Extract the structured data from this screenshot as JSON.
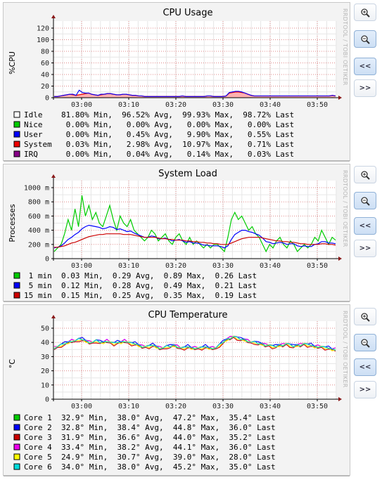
{
  "watermark": "RRDTOOL / TOBI OETIKER",
  "buttons": [
    {
      "name": "zoom-in-button",
      "icon": "zoom-in-icon",
      "label": ""
    },
    {
      "name": "zoom-out-button",
      "icon": "zoom-out-icon",
      "label": ""
    },
    {
      "name": "scroll-back-button",
      "icon": "",
      "label": "<<"
    },
    {
      "name": "scroll-forward-button",
      "icon": "",
      "label": ">>"
    }
  ],
  "colors": {
    "grid_major": "#e08a8a",
    "grid_minor": "#e6e6e6",
    "axis": "#000000",
    "arrow": "#8b1a1a",
    "plot_bg": "#ffffff"
  },
  "chart_data": [
    {
      "type": "area",
      "title": "CPU Usage",
      "ylabel": "%CPU",
      "xlabel": "",
      "x_ticks": [
        "03:00",
        "03:10",
        "03:20",
        "03:30",
        "03:40",
        "03:50"
      ],
      "y_ticks": [
        "0",
        "20",
        "40",
        "60",
        "80",
        "100",
        "120"
      ],
      "ylim": [
        0,
        120
      ],
      "grid": true,
      "series": [
        {
          "name": "Idle",
          "color": "#ffffff",
          "min": "81.80%",
          "avg": "96.52%",
          "max": "99.93%",
          "last": "98.72%"
        },
        {
          "name": "Nice",
          "color": "#00cc00",
          "min": "0.00%",
          "avg": "0.00%",
          "max": "0.00%",
          "last": "0.00%"
        },
        {
          "name": "User",
          "color": "#0000ff",
          "min": "0.00%",
          "avg": "0.45%",
          "max": "9.90%",
          "last": "0.55%"
        },
        {
          "name": "System",
          "color": "#ee0000",
          "min": "0.03%",
          "avg": "2.98%",
          "max": "10.97%",
          "last": "0.71%"
        },
        {
          "name": "IRQ",
          "color": "#880088",
          "min": "0.00%",
          "avg": "0.04%",
          "max": "0.14%",
          "last": "0.03%"
        }
      ],
      "system_values": [
        2,
        2,
        3,
        4,
        5,
        6,
        5,
        4,
        5,
        6,
        7,
        8,
        6,
        5,
        4,
        5,
        6,
        7,
        7,
        6,
        5,
        5,
        6,
        6,
        5,
        4,
        4,
        3,
        3,
        2,
        2,
        2,
        2,
        2,
        2,
        2,
        2,
        2,
        2,
        2,
        2,
        3,
        2,
        2,
        2,
        2,
        2,
        2,
        2,
        3,
        3,
        2,
        2,
        2,
        2,
        3,
        8,
        9,
        10,
        10,
        9,
        8,
        6,
        4,
        3,
        3,
        3,
        3,
        3,
        3,
        3,
        3,
        3,
        3,
        3,
        3,
        3,
        3,
        3,
        3,
        3,
        3,
        3,
        3,
        3,
        3,
        3,
        3,
        3,
        4,
        3
      ],
      "user_values": [
        0,
        0,
        0,
        0,
        0,
        0,
        1,
        0,
        8,
        3,
        1,
        0,
        0,
        0,
        0,
        1,
        0,
        0,
        0,
        0,
        0,
        0,
        0,
        0,
        0,
        0,
        0,
        0,
        0,
        0,
        0,
        0,
        0,
        0,
        0,
        0,
        0,
        0,
        0,
        0,
        0,
        0,
        0,
        0,
        0,
        0,
        0,
        0,
        0,
        0,
        0,
        0,
        0,
        0,
        0,
        0,
        1,
        1,
        1,
        1,
        1,
        0,
        0,
        0,
        0,
        0,
        0,
        0,
        0,
        0,
        0,
        0,
        0,
        0,
        0,
        0,
        0,
        0,
        0,
        0,
        0,
        0,
        0,
        0,
        0,
        0,
        0,
        0,
        0,
        0,
        0
      ]
    },
    {
      "type": "line",
      "title": "System Load",
      "ylabel": "Processes",
      "xlabel": "",
      "x_ticks": [
        "03:00",
        "03:10",
        "03:20",
        "03:30",
        "03:40",
        "03:50"
      ],
      "y_ticks": [
        "0",
        "200 m",
        "400 m",
        "600 m",
        "800 m",
        "1000 m"
      ],
      "ylim": [
        0,
        1000
      ],
      "grid": true,
      "series": [
        {
          "name": "1 min",
          "color": "#00cc00",
          "min": "0.03",
          "avg": "0.29",
          "max": "0.89",
          "last": "0.26",
          "values": [
            0.1,
            0.15,
            0.2,
            0.35,
            0.55,
            0.4,
            0.7,
            0.45,
            0.89,
            0.6,
            0.75,
            0.55,
            0.65,
            0.5,
            0.45,
            0.6,
            0.75,
            0.55,
            0.4,
            0.6,
            0.5,
            0.45,
            0.55,
            0.4,
            0.35,
            0.3,
            0.25,
            0.3,
            0.4,
            0.35,
            0.25,
            0.3,
            0.35,
            0.25,
            0.2,
            0.3,
            0.35,
            0.25,
            0.2,
            0.3,
            0.2,
            0.25,
            0.2,
            0.15,
            0.2,
            0.15,
            0.2,
            0.2,
            0.15,
            0.1,
            0.3,
            0.55,
            0.65,
            0.55,
            0.6,
            0.5,
            0.4,
            0.45,
            0.35,
            0.3,
            0.2,
            0.1,
            0.2,
            0.15,
            0.25,
            0.3,
            0.2,
            0.15,
            0.25,
            0.2,
            0.1,
            0.15,
            0.2,
            0.15,
            0.2,
            0.3,
            0.25,
            0.4,
            0.3,
            0.2,
            0.3,
            0.26
          ]
        },
        {
          "name": "5 min",
          "color": "#0000ff",
          "min": "0.12",
          "avg": "0.28",
          "max": "0.49",
          "last": "0.21",
          "values": [
            0.15,
            0.16,
            0.18,
            0.22,
            0.27,
            0.3,
            0.34,
            0.37,
            0.42,
            0.45,
            0.47,
            0.46,
            0.45,
            0.44,
            0.42,
            0.43,
            0.45,
            0.44,
            0.41,
            0.42,
            0.4,
            0.38,
            0.39,
            0.36,
            0.34,
            0.32,
            0.3,
            0.3,
            0.32,
            0.31,
            0.28,
            0.28,
            0.29,
            0.27,
            0.25,
            0.26,
            0.27,
            0.25,
            0.23,
            0.24,
            0.22,
            0.22,
            0.21,
            0.19,
            0.19,
            0.18,
            0.18,
            0.18,
            0.17,
            0.15,
            0.18,
            0.27,
            0.34,
            0.37,
            0.4,
            0.4,
            0.38,
            0.37,
            0.35,
            0.33,
            0.29,
            0.24,
            0.23,
            0.21,
            0.22,
            0.23,
            0.22,
            0.2,
            0.21,
            0.21,
            0.18,
            0.17,
            0.18,
            0.17,
            0.17,
            0.2,
            0.21,
            0.24,
            0.24,
            0.22,
            0.22,
            0.21
          ]
        },
        {
          "name": "15 min",
          "color": "#cc0000",
          "min": "0.15",
          "avg": "0.25",
          "max": "0.35",
          "last": "0.19",
          "values": [
            0.16,
            0.16,
            0.17,
            0.18,
            0.2,
            0.22,
            0.23,
            0.25,
            0.27,
            0.29,
            0.31,
            0.32,
            0.33,
            0.34,
            0.34,
            0.35,
            0.35,
            0.35,
            0.35,
            0.35,
            0.34,
            0.34,
            0.34,
            0.33,
            0.32,
            0.31,
            0.3,
            0.3,
            0.3,
            0.3,
            0.29,
            0.28,
            0.28,
            0.27,
            0.27,
            0.26,
            0.26,
            0.26,
            0.25,
            0.25,
            0.24,
            0.24,
            0.23,
            0.23,
            0.22,
            0.22,
            0.21,
            0.21,
            0.2,
            0.2,
            0.2,
            0.22,
            0.24,
            0.26,
            0.28,
            0.29,
            0.3,
            0.3,
            0.3,
            0.3,
            0.29,
            0.28,
            0.27,
            0.26,
            0.25,
            0.25,
            0.24,
            0.24,
            0.23,
            0.23,
            0.22,
            0.21,
            0.21,
            0.2,
            0.2,
            0.2,
            0.2,
            0.21,
            0.21,
            0.2,
            0.2,
            0.19
          ]
        }
      ]
    },
    {
      "type": "line",
      "title": "CPU Temperature",
      "ylabel": "°C",
      "xlabel": "",
      "x_ticks": [
        "03:00",
        "03:10",
        "03:20",
        "03:30",
        "03:40",
        "03:50"
      ],
      "y_ticks": [
        "0",
        "10",
        "20",
        "30",
        "40",
        "50"
      ],
      "ylim": [
        0,
        50
      ],
      "grid": true,
      "base_values": [
        36,
        37,
        38,
        39,
        40,
        41,
        41,
        42,
        42,
        41,
        40,
        40,
        41,
        40,
        40,
        41,
        40,
        39,
        40,
        40,
        41,
        40,
        39,
        39,
        38,
        37,
        37,
        37,
        38,
        37,
        36,
        36,
        37,
        37,
        38,
        37,
        36,
        36,
        37,
        36,
        36,
        36,
        36,
        37,
        36,
        36,
        36,
        38,
        40,
        42,
        43,
        44,
        43,
        42,
        42,
        41,
        40,
        40,
        39,
        39,
        38,
        38,
        37,
        37,
        38,
        38,
        39,
        38,
        37,
        38,
        38,
        39,
        38,
        38,
        37,
        37,
        37,
        36,
        36,
        35,
        35
      ],
      "series": [
        {
          "name": "Core 1",
          "color": "#00cc00",
          "min": "32.9°",
          "avg": "38.0°",
          "max": "47.2°",
          "last": "35.4°",
          "offset": 0.3
        },
        {
          "name": "Core 2",
          "color": "#0000ff",
          "min": "32.8°",
          "avg": "38.4°",
          "max": "44.8°",
          "last": "36.0°",
          "offset": 0.8
        },
        {
          "name": "Core 3",
          "color": "#cc0000",
          "min": "31.9°",
          "avg": "36.6°",
          "max": "44.0°",
          "last": "35.2°",
          "offset": -0.8
        },
        {
          "name": "Core 4",
          "color": "#ee00ee",
          "min": "33.4°",
          "avg": "38.2°",
          "max": "44.1°",
          "last": "36.0°",
          "offset": 0.5
        },
        {
          "name": "Core 5",
          "color": "#ffff00",
          "min": "24.9°",
          "avg": "30.7°",
          "max": "39.0°",
          "last": "28.0°",
          "offset": -0.3
        },
        {
          "name": "Core 6",
          "color": "#00dddd",
          "min": "34.0°",
          "avg": "38.0°",
          "max": "45.2°",
          "last": "35.0°",
          "offset": 0.1
        }
      ]
    }
  ]
}
